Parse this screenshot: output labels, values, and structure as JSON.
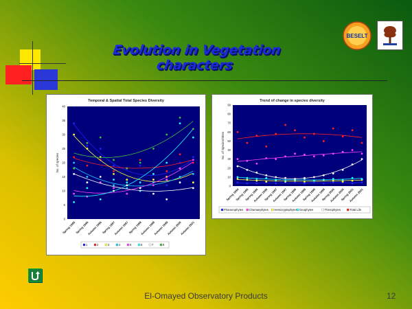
{
  "slide": {
    "title": "Evolution in Vegetation characters",
    "footer": "El-Omayed Observatory Products",
    "page_number": "12",
    "colors": {
      "bg_top_left": "#2e7d0e",
      "bg_bottom": "#f2c800",
      "title": "#1a2bd8"
    },
    "logos": {
      "left": "BESELT",
      "right_icon": "tree-emblem-icon"
    },
    "nav_icon": "return-arrow-icon"
  },
  "chart_data": [
    {
      "type": "scatter",
      "title": "Temporal & Spatial Total Species Diversity",
      "xlabel": "",
      "ylabel": "No. of species",
      "ylim": [
        0,
        40
      ],
      "yticks": [
        0,
        5,
        10,
        15,
        20,
        25,
        30,
        35,
        40
      ],
      "categories": [
        "Spring 1995",
        "Spring 1996",
        "Autumn 1996",
        "Spring 1997",
        "Autumn 1997",
        "Spring 1998",
        "Autumn 1998",
        "Autumn 1999",
        "Autumn 2000",
        "Autumn 2001"
      ],
      "legend": [
        "1",
        "2",
        "3",
        "4",
        "5",
        "6",
        "7",
        "8"
      ],
      "series": [
        {
          "name": "1",
          "color": "#2020ff",
          "values": [
            34,
            26,
            25,
            19,
            18,
            19,
            14,
            12,
            20,
            22
          ]
        },
        {
          "name": "2",
          "color": "#ff2020",
          "values": [
            22,
            19,
            21,
            17,
            18,
            21,
            16,
            17,
            23,
            20
          ]
        },
        {
          "name": "3",
          "color": "#ffff40",
          "values": [
            30,
            25,
            22,
            16,
            14,
            13,
            14,
            15,
            18,
            13
          ]
        },
        {
          "name": "4",
          "color": "#20d0ff",
          "values": [
            20,
            15,
            13,
            12,
            11,
            13,
            13,
            14,
            15,
            16
          ]
        },
        {
          "name": "5",
          "color": "#ff40ff",
          "values": [
            9,
            8,
            13,
            11,
            9,
            10,
            12,
            14,
            18,
            21
          ]
        },
        {
          "name": "6",
          "color": "#20ffff",
          "values": [
            6,
            11,
            7,
            14,
            13,
            10,
            16,
            20,
            34,
            29
          ]
        },
        {
          "name": "7",
          "color": "#ffffff",
          "values": [
            16,
            13,
            15,
            10,
            12,
            11,
            9,
            7,
            13,
            11
          ]
        },
        {
          "name": "8",
          "color": "#40c040",
          "values": [
            18,
            27,
            29,
            21,
            18,
            20,
            25,
            30,
            36,
            32
          ]
        }
      ]
    },
    {
      "type": "scatter",
      "title": "Trend of change in species diversity",
      "xlabel": "",
      "ylabel": "No. of Species/Sites",
      "ylim": [
        0,
        90
      ],
      "yticks": [
        0,
        10,
        20,
        30,
        40,
        50,
        60,
        70,
        80,
        90
      ],
      "categories": [
        "Spring 1994",
        "Spring 1995",
        "Spring 1996",
        "Autumn 1996",
        "Spring 1997",
        "Autumn 1997",
        "Spring 1998",
        "Autumn 1998",
        "Spring 1999",
        "Autumn 1999",
        "Spring 2000",
        "Autumn 2000",
        "Spring 2001",
        "Autumn 2001"
      ],
      "legend": [
        "Phanerophytes",
        "Chamaephytes",
        "Hemicryptophytes",
        "Geophytes",
        "Therophytes",
        "Total Life"
      ],
      "series": [
        {
          "name": "Phanerophytes",
          "color": "#2020ff",
          "values": [
            4,
            3,
            3,
            4,
            3,
            4,
            4,
            3,
            4,
            3,
            4,
            4,
            3,
            4
          ]
        },
        {
          "name": "Chamaephytes",
          "color": "#ff40ff",
          "values": [
            30,
            28,
            25,
            31,
            30,
            33,
            36,
            35,
            33,
            34,
            36,
            38,
            40,
            36
          ]
        },
        {
          "name": "Hemicryptophytes",
          "color": "#ffff40",
          "values": [
            8,
            7,
            6,
            5,
            6,
            5,
            6,
            5,
            6,
            7,
            6,
            5,
            6,
            7
          ]
        },
        {
          "name": "Geophytes",
          "color": "#20ffff",
          "values": [
            10,
            9,
            8,
            9,
            7,
            6,
            7,
            8,
            6,
            7,
            8,
            7,
            9,
            8
          ]
        },
        {
          "name": "Therophytes",
          "color": "#ffffff",
          "values": [
            22,
            18,
            15,
            12,
            10,
            9,
            8,
            9,
            10,
            12,
            14,
            18,
            24,
            30
          ]
        },
        {
          "name": "Total Life",
          "color": "#ff2020",
          "values": [
            60,
            48,
            56,
            44,
            58,
            68,
            62,
            54,
            58,
            50,
            64,
            55,
            62,
            48
          ]
        }
      ]
    }
  ]
}
